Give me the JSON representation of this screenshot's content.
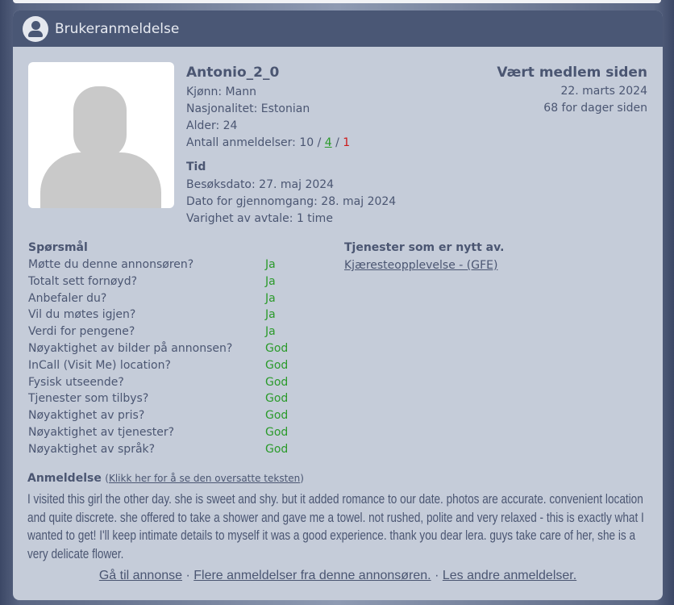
{
  "header": {
    "title": "Brukeranmeldelse",
    "icon": "user-circle-icon"
  },
  "profile": {
    "name": "Antonio_2_0",
    "gender": "Kjønn: Mann",
    "nationality": "Nasjonalitet: Estonian",
    "age": "Alder: 24",
    "reviews_label": "Antall anmeldelser: 10 / ",
    "reviews_positive": "4",
    "reviews_sep": " / ",
    "reviews_negative": "1"
  },
  "member": {
    "title": "Vært medlem siden",
    "date": "22. marts 2024",
    "days": "68 for dager siden"
  },
  "time": {
    "title": "Tid",
    "visit": "Besøksdato: 27. maj 2024",
    "review_date": "Dato for gjennomgang: 28. maj 2024",
    "duration": "Varighet av avtale: 1 time"
  },
  "questions": {
    "title": "Spørsmål",
    "items": [
      {
        "q": "Møtte du denne annonsøren?",
        "a": "Ja"
      },
      {
        "q": "Totalt sett fornøyd?",
        "a": "Ja"
      },
      {
        "q": "Anbefaler du?",
        "a": "Ja"
      },
      {
        "q": "Vil du møtes igjen?",
        "a": "Ja"
      },
      {
        "q": "Verdi for pengene?",
        "a": "Ja"
      },
      {
        "q": "Nøyaktighet av bilder på annonsen?",
        "a": "God"
      },
      {
        "q": "InCall (Visit Me) location?",
        "a": "God"
      },
      {
        "q": "Fysisk utseende?",
        "a": "God"
      },
      {
        "q": "Tjenester som tilbys?",
        "a": "God"
      },
      {
        "q": "Nøyaktighet av pris?",
        "a": "God"
      },
      {
        "q": "Nøyaktighet av tjenester?",
        "a": "God"
      },
      {
        "q": "Nøyaktighet av språk?",
        "a": "God"
      }
    ]
  },
  "services": {
    "title": "Tjenester som er nytt av.",
    "items": [
      "Kjæresteopplevelse - (GFE)"
    ]
  },
  "review": {
    "title": "Anmeldelse",
    "translate_open": "(",
    "translate_link": "Klikk her for å se den oversatte teksten",
    "translate_close": ")",
    "text": "I visited this girl the other day. she is sweet and shy. but it added romance to our date. photos are accurate. convenient location and quite discrete. she offered to take a shower and gave me a towel. not rushed, polite and very relaxed - this is exactly what I wanted to get! I'll keep intimate details to myself it was a good experience. thank you dear lera. guys take care of her, she is a very delicate flower."
  },
  "footer": {
    "link1": "Gå til annonse",
    "sep": " · ",
    "link2": "Flere anmeldelser fra denne annonsøren.",
    "link3": "Les andre anmeldelser."
  },
  "colors": {
    "header": "#4a5775",
    "card": "#c5ccd9",
    "positive": "#2a9a2a",
    "negative": "#cc1a1a"
  }
}
